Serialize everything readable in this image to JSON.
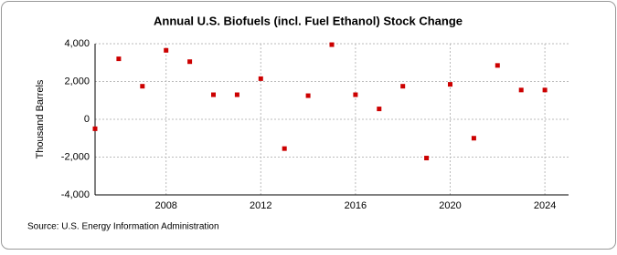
{
  "chart_data": {
    "type": "scatter",
    "title": "Annual U.S. Biofuels (incl. Fuel Ethanol) Stock Change",
    "y_label": "Thousand Barrels",
    "source": "Source: U.S. Energy Information Administration",
    "x": [
      2005,
      2006,
      2007,
      2008,
      2009,
      2010,
      2011,
      2012,
      2013,
      2014,
      2015,
      2016,
      2017,
      2018,
      2019,
      2020,
      2021,
      2022,
      2023,
      2024
    ],
    "series": [
      {
        "name": "Stock Change",
        "color": "#cc0000",
        "values": [
          -500,
          3200,
          1750,
          3650,
          3050,
          1300,
          1300,
          2150,
          -1550,
          1250,
          3950,
          1300,
          550,
          1750,
          -2050,
          1850,
          -1000,
          2850,
          1550,
          1550
        ]
      }
    ],
    "xlim": [
      2005,
      2025
    ],
    "xticks": [
      2008,
      2012,
      2016,
      2020,
      2024
    ],
    "ylim": [
      -4000,
      4000
    ],
    "yticks": [
      {
        "value": -4000,
        "label": "-4,000"
      },
      {
        "value": -2000,
        "label": "-2,000"
      },
      0,
      {
        "value": 2000,
        "label": "2,000"
      },
      {
        "value": 4000,
        "label": "4,000"
      }
    ],
    "grid": true
  }
}
